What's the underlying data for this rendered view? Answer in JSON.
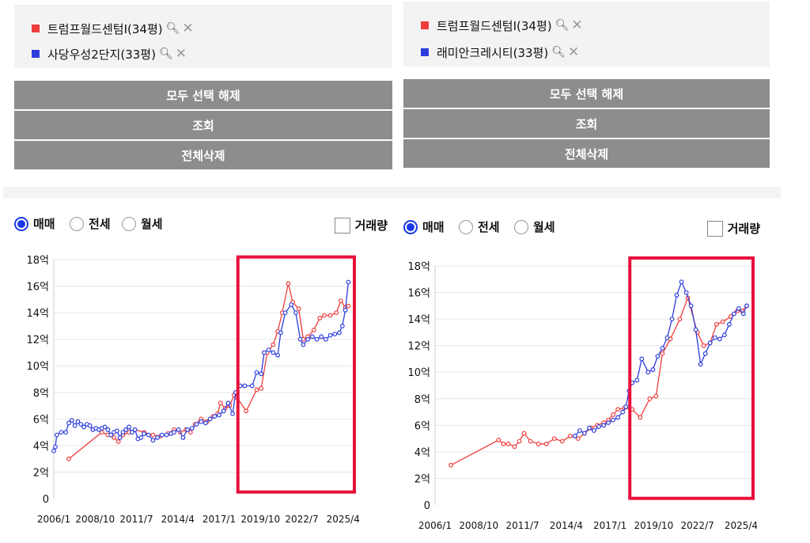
{
  "panels": [
    {
      "legend": [
        {
          "label": "트럼프월드센텀I(34평)",
          "color": "#f03c3c"
        },
        {
          "label": "사당우성2단지(33평)",
          "color": "#2d3ddd"
        }
      ],
      "buttons": [
        "모두 선택 해제",
        "조회",
        "전체삭제"
      ],
      "radios": [
        {
          "label": "매매",
          "selected": true
        },
        {
          "label": "전세",
          "selected": false
        },
        {
          "label": "월세",
          "selected": false
        }
      ],
      "checkbox": {
        "label": "거래량",
        "checked": false
      }
    },
    {
      "legend": [
        {
          "label": "트럼프월드센텀I(34평)",
          "color": "#f03c3c"
        },
        {
          "label": "래미안크레시티(33평)",
          "color": "#2d3ddd"
        }
      ],
      "buttons": [
        "모두 선택 해제",
        "조회",
        "전체삭제"
      ],
      "radios": [
        {
          "label": "매매",
          "selected": true
        },
        {
          "label": "전세",
          "selected": false
        },
        {
          "label": "월세",
          "selected": false
        }
      ],
      "checkbox": {
        "label": "거래량",
        "checked": false
      }
    }
  ],
  "chart_data": [
    {
      "type": "line",
      "ylim": [
        0,
        18
      ],
      "yticks": [
        0,
        2,
        4,
        6,
        8,
        10,
        12,
        14,
        16,
        18
      ],
      "ytick_labels": [
        "0",
        "2억",
        "4억",
        "6억",
        "8억",
        "10억",
        "12억",
        "14억",
        "16억",
        "18억"
      ],
      "xlim": [
        2006,
        2026
      ],
      "xticks": [
        2006.0,
        2008.75,
        2011.5,
        2014.25,
        2017.0,
        2019.75,
        2022.5,
        2025.25
      ],
      "xtick_labels": [
        "2006/1",
        "2008/10",
        "2011/7",
        "2014/4",
        "2017/1",
        "2019/10",
        "2022/7",
        "2025/4"
      ],
      "highlight": {
        "x": [
          2018.25,
          2026.0
        ],
        "y": [
          0.5,
          18.2
        ],
        "color": "#e8103c"
      },
      "series": [
        {
          "name": "트럼프월드센텀I(34평)",
          "color": "#f03c3c",
          "x": [
            2007.0,
            2009.2,
            2009.6,
            2010.0,
            2010.3,
            2010.6,
            2011.0,
            2011.4,
            2012.0,
            2012.6,
            2013.1,
            2013.6,
            2014.0,
            2014.4,
            2014.8,
            2015.1,
            2015.4,
            2015.8,
            2016.2,
            2016.6,
            2016.9,
            2017.1,
            2017.4,
            2017.7,
            2018.0,
            2018.2,
            2018.8,
            2019.5,
            2019.8,
            2020.2,
            2020.6,
            2020.9,
            2021.2,
            2021.6,
            2021.9,
            2022.3,
            2022.6,
            2022.9,
            2023.3,
            2023.7,
            2024.0,
            2024.4,
            2024.8,
            2025.1,
            2025.4,
            2025.6
          ],
          "y": [
            3.0,
            5.0,
            4.8,
            4.6,
            4.3,
            4.8,
            5.0,
            5.2,
            5.0,
            4.8,
            4.7,
            4.9,
            5.2,
            5.0,
            5.2,
            5.0,
            5.6,
            6.0,
            5.8,
            6.2,
            6.4,
            7.2,
            6.8,
            7.0,
            7.8,
            7.6,
            6.6,
            8.2,
            8.3,
            11.0,
            11.6,
            12.6,
            14.0,
            16.2,
            14.8,
            14.3,
            12.0,
            12.2,
            12.7,
            13.6,
            13.8,
            13.8,
            14.0,
            14.9,
            14.4,
            14.5
          ]
        },
        {
          "name": "사당우성2단지(33평)",
          "color": "#2d3ddd",
          "x": [
            2006.0,
            2006.1,
            2006.2,
            2006.5,
            2006.8,
            2007.0,
            2007.2,
            2007.4,
            2007.6,
            2007.8,
            2008.0,
            2008.2,
            2008.4,
            2008.6,
            2008.8,
            2009.0,
            2009.2,
            2009.4,
            2009.6,
            2009.8,
            2010.0,
            2010.2,
            2010.4,
            2010.6,
            2010.8,
            2011.0,
            2011.2,
            2011.4,
            2011.6,
            2011.8,
            2012.0,
            2012.3,
            2012.6,
            2012.9,
            2013.2,
            2013.5,
            2013.8,
            2014.0,
            2014.3,
            2014.6,
            2014.9,
            2015.2,
            2015.5,
            2015.8,
            2016.1,
            2016.4,
            2016.7,
            2017.0,
            2017.3,
            2017.6,
            2017.9,
            2018.1,
            2018.4,
            2018.7,
            2019.2,
            2019.5,
            2019.8,
            2020.0,
            2020.3,
            2020.6,
            2020.9,
            2021.1,
            2021.4,
            2021.8,
            2022.1,
            2022.4,
            2022.6,
            2022.9,
            2023.2,
            2023.5,
            2023.8,
            2024.1,
            2024.4,
            2024.7,
            2025.0,
            2025.2,
            2025.4,
            2025.6
          ],
          "y": [
            3.6,
            3.9,
            4.8,
            5.0,
            5.0,
            5.7,
            5.9,
            5.5,
            5.8,
            5.6,
            5.4,
            5.6,
            5.5,
            5.2,
            5.3,
            5.2,
            5.3,
            5.4,
            5.2,
            4.8,
            5.0,
            5.1,
            4.6,
            5.0,
            5.2,
            5.4,
            5.0,
            5.2,
            4.5,
            4.6,
            4.9,
            4.8,
            4.4,
            4.6,
            4.8,
            4.8,
            4.9,
            5.0,
            5.2,
            4.6,
            5.2,
            5.3,
            5.6,
            5.8,
            5.7,
            6.0,
            6.2,
            6.3,
            6.6,
            7.2,
            6.4,
            8.0,
            8.5,
            8.5,
            8.5,
            9.5,
            9.4,
            11.0,
            11.2,
            11.0,
            10.8,
            12.5,
            14.0,
            14.6,
            14.0,
            12.0,
            11.6,
            12.0,
            12.2,
            12.0,
            12.2,
            12.0,
            12.3,
            12.4,
            12.5,
            13.0,
            14.2,
            16.3
          ]
        }
      ]
    },
    {
      "type": "line",
      "ylim": [
        0,
        18
      ],
      "yticks": [
        0,
        2,
        4,
        6,
        8,
        10,
        12,
        14,
        16,
        18
      ],
      "ytick_labels": [
        "0",
        "2억",
        "4억",
        "6억",
        "8억",
        "10억",
        "12억",
        "14억",
        "16억",
        "18억"
      ],
      "xlim": [
        2006,
        2026
      ],
      "xticks": [
        2006.0,
        2008.75,
        2011.5,
        2014.25,
        2017.0,
        2019.75,
        2022.5,
        2025.25
      ],
      "xtick_labels": [
        "2006/1",
        "2008/10",
        "2011/7",
        "2014/4",
        "2017/1",
        "2019/10",
        "2022/7",
        "2025/4"
      ],
      "highlight": {
        "x": [
          2018.25,
          2026.0
        ],
        "y": [
          0.5,
          18.6
        ],
        "color": "#e8103c"
      },
      "series": [
        {
          "name": "트럼프월드센텀I(34평)",
          "color": "#f03c3c",
          "x": [
            2007.0,
            2010.0,
            2010.3,
            2010.6,
            2011.0,
            2011.3,
            2011.6,
            2012.0,
            2012.5,
            2013.0,
            2013.5,
            2014.0,
            2014.5,
            2015.0,
            2015.4,
            2015.8,
            2016.2,
            2016.6,
            2016.9,
            2017.2,
            2017.5,
            2017.9,
            2018.4,
            2018.9,
            2019.5,
            2019.9,
            2020.3,
            2020.8,
            2021.4,
            2021.9,
            2022.5,
            2022.9,
            2023.3,
            2023.7,
            2024.1,
            2024.6,
            2025.0,
            2025.3,
            2025.6
          ],
          "y": [
            3.0,
            4.9,
            4.6,
            4.6,
            4.4,
            4.8,
            5.4,
            4.8,
            4.6,
            4.6,
            5.0,
            4.8,
            5.2,
            5.0,
            5.4,
            5.8,
            6.0,
            6.2,
            6.4,
            6.8,
            7.2,
            7.3,
            7.2,
            6.6,
            8.0,
            8.2,
            11.4,
            12.5,
            14.0,
            15.6,
            13.0,
            12.0,
            12.2,
            13.6,
            13.8,
            14.2,
            14.6,
            14.6,
            15.0
          ]
        },
        {
          "name": "래미안크레시티(33평)",
          "color": "#2d3ddd",
          "x": [
            2014.8,
            2015.1,
            2015.4,
            2015.7,
            2016.0,
            2016.3,
            2016.6,
            2016.9,
            2017.2,
            2017.5,
            2017.8,
            2018.0,
            2018.2,
            2018.4,
            2018.7,
            2019.0,
            2019.4,
            2019.7,
            2020.0,
            2020.3,
            2020.6,
            2020.9,
            2021.2,
            2021.5,
            2021.8,
            2022.1,
            2022.4,
            2022.7,
            2023.0,
            2023.3,
            2023.6,
            2023.9,
            2024.2,
            2024.5,
            2024.8,
            2025.1,
            2025.4,
            2025.6
          ],
          "y": [
            5.2,
            5.6,
            5.4,
            5.8,
            5.6,
            5.9,
            6.0,
            6.2,
            6.4,
            6.6,
            7.0,
            7.4,
            8.6,
            9.2,
            9.4,
            11.0,
            10.0,
            10.2,
            11.2,
            11.8,
            12.6,
            14.0,
            15.8,
            16.8,
            16.0,
            15.0,
            13.2,
            10.6,
            11.4,
            12.2,
            12.6,
            12.5,
            12.8,
            13.6,
            14.4,
            14.8,
            14.4,
            15.0
          ]
        }
      ]
    }
  ]
}
